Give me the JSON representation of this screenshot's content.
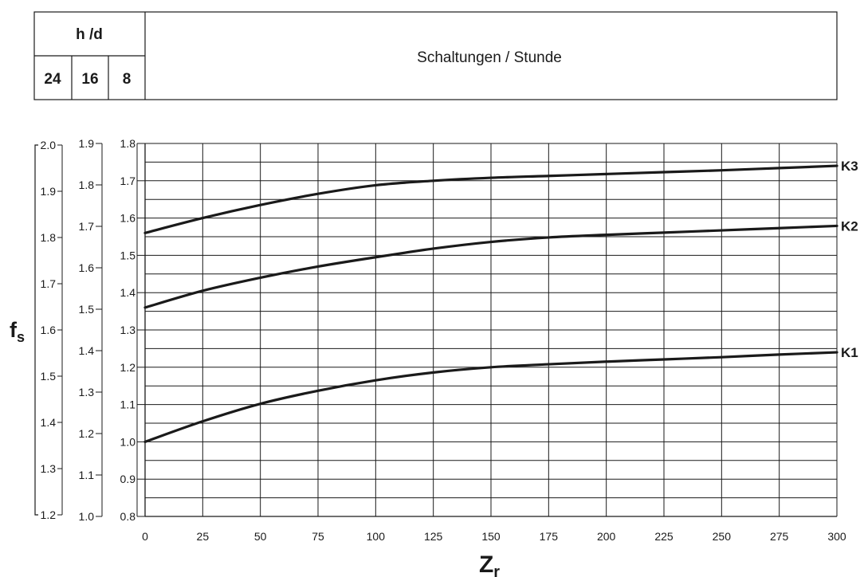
{
  "header_table": {
    "hours_label": "h /d",
    "hours_values": [
      "24",
      "16",
      "8"
    ],
    "title": "Schaltungen / Stunde"
  },
  "chart_data": {
    "type": "line",
    "xlabel": "Z",
    "xlabel_sub": "r",
    "ylabel": "f",
    "ylabel_sub": "s",
    "xlim": [
      0,
      300
    ],
    "ylim": [
      0.8,
      1.8
    ],
    "x_ticks": [
      0,
      25,
      50,
      75,
      100,
      125,
      150,
      175,
      200,
      225,
      250,
      275,
      300
    ],
    "y_ticks_8h": [
      "0.8",
      "0.9",
      "1.0",
      "1.1",
      "1.2",
      "1.3",
      "1.4",
      "1.5",
      "1.6",
      "1.7",
      "1.8"
    ],
    "y_ticks_16h": [
      "1.0",
      "1.1",
      "1.2",
      "1.3",
      "1.4",
      "1.5",
      "1.6",
      "1.7",
      "1.8",
      "1.9"
    ],
    "y_ticks_24h": [
      "1.2",
      "1.3",
      "1.4",
      "1.5",
      "1.6",
      "1.7",
      "1.8",
      "1.9",
      "2.0"
    ],
    "grid": true,
    "series": [
      {
        "name": "K3",
        "x": [
          0,
          25,
          50,
          75,
          100,
          125,
          150,
          175,
          200,
          225,
          250,
          275,
          300
        ],
        "y": [
          1.56,
          1.6,
          1.635,
          1.665,
          1.688,
          1.7,
          1.708,
          1.713,
          1.718,
          1.723,
          1.728,
          1.734,
          1.74
        ]
      },
      {
        "name": "K2",
        "x": [
          0,
          25,
          50,
          75,
          100,
          125,
          150,
          175,
          200,
          225,
          250,
          275,
          300
        ],
        "y": [
          1.36,
          1.405,
          1.44,
          1.47,
          1.495,
          1.518,
          1.536,
          1.548,
          1.555,
          1.561,
          1.567,
          1.573,
          1.579
        ]
      },
      {
        "name": "K1",
        "x": [
          0,
          25,
          50,
          75,
          100,
          125,
          150,
          175,
          200,
          225,
          250,
          275,
          300
        ],
        "y": [
          1.0,
          1.055,
          1.102,
          1.137,
          1.165,
          1.186,
          1.2,
          1.208,
          1.215,
          1.221,
          1.227,
          1.234,
          1.24
        ]
      }
    ]
  }
}
